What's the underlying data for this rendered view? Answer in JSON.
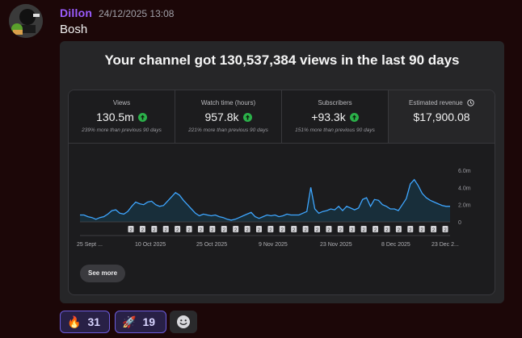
{
  "message": {
    "username": "Dillon",
    "timestamp": "24/12/2025 13:08",
    "text": "Bosh"
  },
  "embed": {
    "title": "Your channel got 130,537,384 views in the last 90 days",
    "stats": [
      {
        "label": "Views",
        "value": "130.5m",
        "trend": "up",
        "sub": "239% more than previous 90 days"
      },
      {
        "label": "Watch time (hours)",
        "value": "957.8k",
        "trend": "up",
        "sub": "221% more than previous 90 days"
      },
      {
        "label": "Subscribers",
        "value": "+93.3k",
        "trend": "up",
        "sub": "151% more than previous 90 days"
      },
      {
        "label": "Estimated revenue",
        "value": "$17,900.08",
        "icon": "clock-icon"
      }
    ],
    "see_more_label": "See more"
  },
  "chart_data": {
    "type": "area",
    "x_tick_labels": [
      "25 Sept ...",
      "10 Oct 2025",
      "25 Oct 2025",
      "9 Nov 2025",
      "23 Nov 2025",
      "8 Dec 2025",
      "23 Dec 2..."
    ],
    "y_tick_labels": [
      "6.0m",
      "4.0m",
      "2.0m",
      "0"
    ],
    "ylim": [
      0,
      6.0
    ],
    "y_unit": "m",
    "line_color": "#3ea6ff",
    "series": [
      {
        "values": [
          0.8,
          0.8,
          0.6,
          0.5,
          0.3,
          0.5,
          0.6,
          0.9,
          1.3,
          1.4,
          1.0,
          0.9,
          1.2,
          1.8,
          2.3,
          2.1,
          2.0,
          2.3,
          2.4,
          2.0,
          1.8,
          1.9,
          2.4,
          2.9,
          3.4,
          3.1,
          2.5,
          2.0,
          1.5,
          1.0,
          0.7,
          0.9,
          0.8,
          0.7,
          0.8,
          0.6,
          0.5,
          0.3,
          0.2,
          0.3,
          0.5,
          0.7,
          0.9,
          1.1,
          0.6,
          0.4,
          0.6,
          0.8,
          0.7,
          0.8,
          0.6,
          0.7,
          0.9,
          0.8,
          0.8,
          0.8,
          1.0,
          1.2,
          4.0,
          1.5,
          1.0,
          1.2,
          1.3,
          1.5,
          1.4,
          1.8,
          1.3,
          1.8,
          1.6,
          1.4,
          1.6,
          2.6,
          2.8,
          1.8,
          2.6,
          2.5,
          2.0,
          1.8,
          1.5,
          1.5,
          1.3,
          2.0,
          2.7,
          4.4,
          4.9,
          4.2,
          3.3,
          2.8,
          2.5,
          2.3,
          2.1,
          1.9,
          1.8,
          1.8
        ]
      }
    ],
    "marker_count": 28,
    "marker_label": "2",
    "grid": false
  },
  "reactions": [
    {
      "emoji": "🔥",
      "icon": "fire-icon",
      "count": "31"
    },
    {
      "emoji": "🚀",
      "icon": "rocket-icon",
      "count": "19"
    }
  ]
}
